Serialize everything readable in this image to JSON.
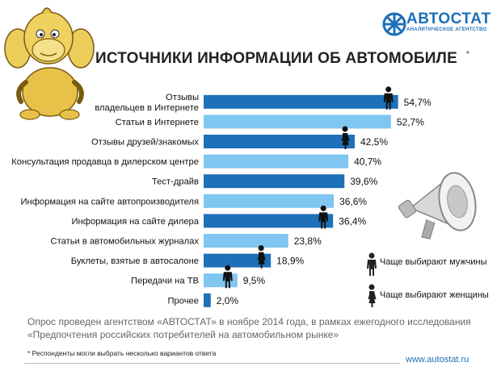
{
  "logo": {
    "name": "АВТОСТАТ",
    "subtitle": "АНАЛИТИЧЕСКОЕ АГЕНТСТВО"
  },
  "chart_data": {
    "type": "bar",
    "orientation": "horizontal",
    "title": "ИСТОЧНИКИ ИНФОРМАЦИИ ОБ АВТОМОБИЛЕ",
    "title_mark": "*",
    "categories": [
      [
        "Отзывы",
        "владельцев в Интернете"
      ],
      [
        "Статьи в Интернете"
      ],
      [
        "Отзывы друзей/знакомых"
      ],
      [
        "Консультация продавца в дилерском центре"
      ],
      [
        "Тест-драйв"
      ],
      [
        "Информация на сайте автопроизводителя"
      ],
      [
        "Информация на сайте дилера"
      ],
      [
        "Статьи в автомобильных журналах"
      ],
      [
        "Буклеты, взятые в автосалоне"
      ],
      [
        "Передачи на ТВ"
      ],
      [
        "Прочее"
      ]
    ],
    "values": [
      54.7,
      52.7,
      42.5,
      40.7,
      39.6,
      36.6,
      36.4,
      23.8,
      18.9,
      9.5,
      2.0
    ],
    "value_labels": [
      "54,7%",
      "52,7%",
      "42,5%",
      "40,7%",
      "39,6%",
      "36,6%",
      "36,4%",
      "23,8%",
      "18,9%",
      "9,5%",
      "2,0%"
    ],
    "preferred_by": [
      "men",
      "none",
      "women",
      "none",
      "none",
      "none",
      "men",
      "none",
      "women",
      "men",
      "none"
    ],
    "bar_colors": {
      "dark": "#1e70b8",
      "light": "#7fc6f0"
    },
    "xlim": [
      0,
      60
    ],
    "grid": false,
    "legend_placement": "right",
    "legend": [
      {
        "key": "men",
        "label": "Чаще выбирают мужчины"
      },
      {
        "key": "women",
        "label": "Чаще выбирают женщины"
      }
    ]
  },
  "notes": {
    "line1": "Опрос проведен агентством «АВТОСТАТ» в ноябре 2014 года,  в рамках ежегодного исследования",
    "line2": "«Предпочтения российских потребителей на автомобильном рынке»",
    "footnote": "* Респонденты могли выбрать несколько вариантов ответа",
    "site": "www.autostat.ru"
  },
  "icons": [
    "monkey-mascot-illustration",
    "megaphone-illustration",
    "man-silhouette-icon",
    "woman-silhouette-icon",
    "autostat-logo-icon"
  ]
}
